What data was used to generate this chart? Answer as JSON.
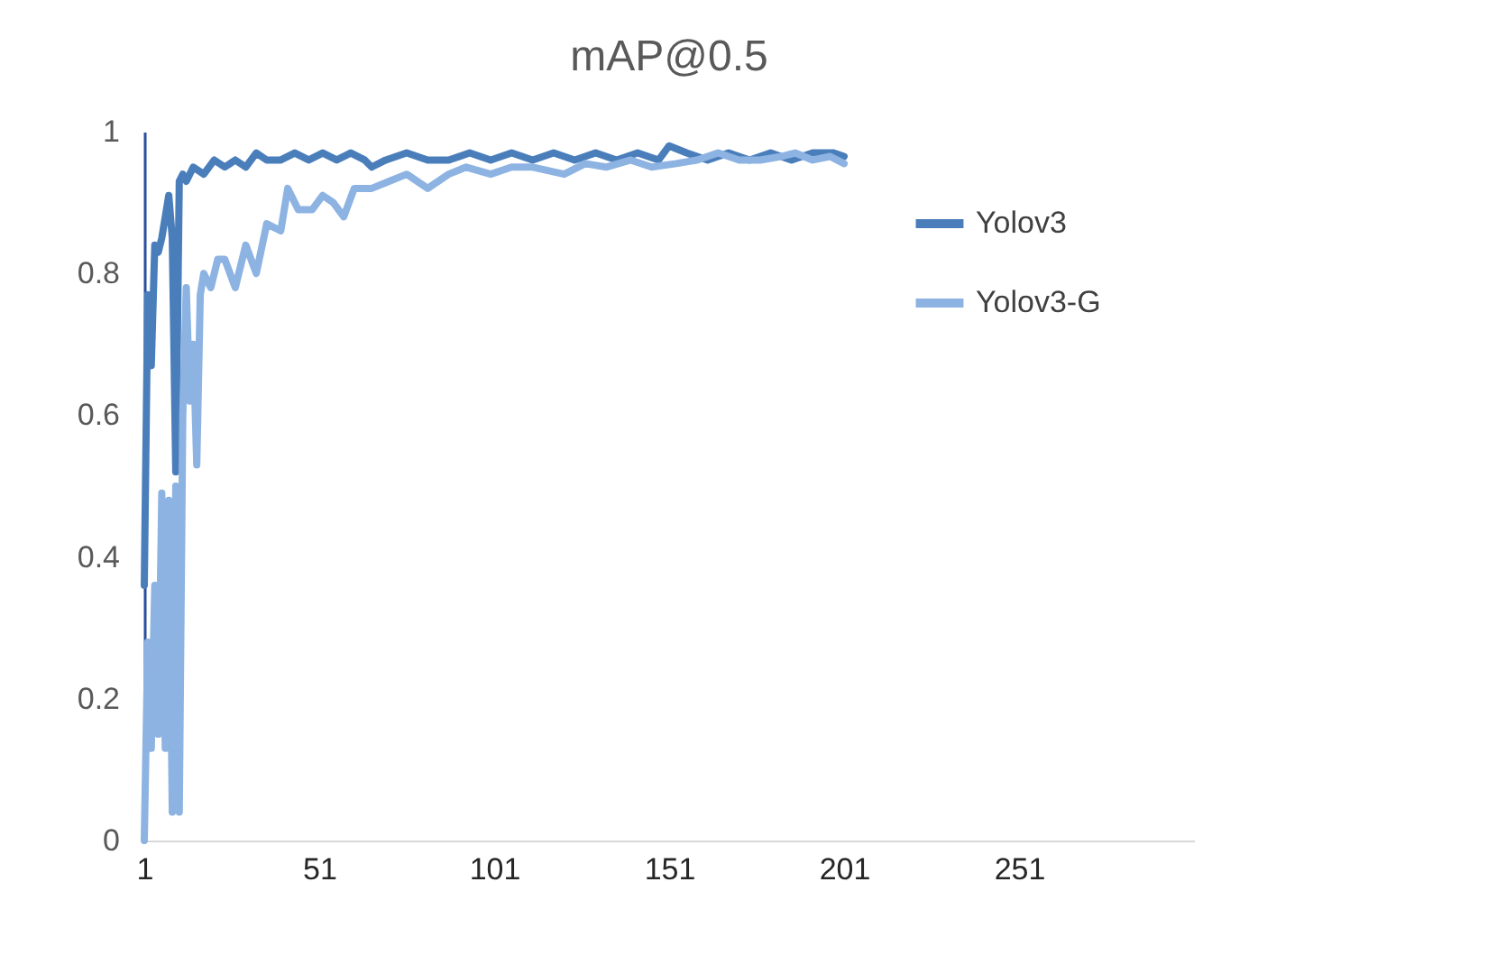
{
  "chart_data": {
    "type": "line",
    "title": "mAP@0.5",
    "xlim": [
      1,
      301
    ],
    "xticks": [
      1,
      51,
      101,
      151,
      201,
      251
    ],
    "ylim": [
      0,
      1
    ],
    "yticks": [
      0,
      0.2,
      0.4,
      0.6,
      0.8,
      1
    ],
    "grid": false,
    "legend": "top right",
    "marker": "none",
    "line_style": "solid",
    "series": [
      {
        "name": "Yolov3",
        "color": "#4a7ebb",
        "x": [
          1,
          2,
          3,
          4,
          5,
          6,
          7,
          8,
          9,
          10,
          11,
          12,
          13,
          15,
          18,
          21,
          24,
          27,
          30,
          33,
          36,
          40,
          44,
          48,
          52,
          56,
          60,
          64,
          66,
          70,
          76,
          82,
          88,
          94,
          100,
          106,
          112,
          118,
          124,
          130,
          136,
          142,
          148,
          151,
          156,
          162,
          168,
          174,
          180,
          186,
          192,
          198,
          201
        ],
        "values": [
          0.36,
          0.77,
          0.67,
          0.84,
          0.83,
          0.85,
          0.88,
          0.91,
          0.85,
          0.52,
          0.93,
          0.94,
          0.93,
          0.95,
          0.94,
          0.96,
          0.95,
          0.96,
          0.95,
          0.97,
          0.96,
          0.96,
          0.97,
          0.96,
          0.97,
          0.96,
          0.97,
          0.96,
          0.95,
          0.96,
          0.97,
          0.96,
          0.96,
          0.97,
          0.96,
          0.97,
          0.96,
          0.97,
          0.96,
          0.97,
          0.96,
          0.97,
          0.96,
          0.98,
          0.97,
          0.96,
          0.97,
          0.96,
          0.97,
          0.96,
          0.97,
          0.97,
          0.965
        ]
      },
      {
        "name": "Yolov3-G",
        "color": "#8db3e2",
        "x": [
          1,
          2,
          3,
          4,
          5,
          6,
          7,
          8,
          9,
          10,
          11,
          12,
          13,
          14,
          15,
          16,
          17,
          18,
          20,
          22,
          24,
          27,
          30,
          33,
          36,
          40,
          42,
          45,
          49,
          52,
          55,
          58,
          61,
          66,
          71,
          76,
          82,
          88,
          93,
          100,
          106,
          112,
          121,
          127,
          133,
          140,
          146,
          153,
          159,
          165,
          171,
          177,
          183,
          187,
          192,
          197,
          201
        ],
        "values": [
          0,
          0.28,
          0.13,
          0.36,
          0.15,
          0.49,
          0.13,
          0.48,
          0.04,
          0.5,
          0.04,
          0.6,
          0.78,
          0.62,
          0.7,
          0.53,
          0.77,
          0.8,
          0.78,
          0.82,
          0.82,
          0.78,
          0.84,
          0.8,
          0.87,
          0.86,
          0.92,
          0.89,
          0.89,
          0.91,
          0.9,
          0.88,
          0.92,
          0.92,
          0.93,
          0.94,
          0.92,
          0.94,
          0.95,
          0.94,
          0.95,
          0.95,
          0.94,
          0.955,
          0.95,
          0.96,
          0.95,
          0.955,
          0.96,
          0.97,
          0.96,
          0.96,
          0.965,
          0.97,
          0.96,
          0.965,
          0.955
        ]
      }
    ]
  }
}
